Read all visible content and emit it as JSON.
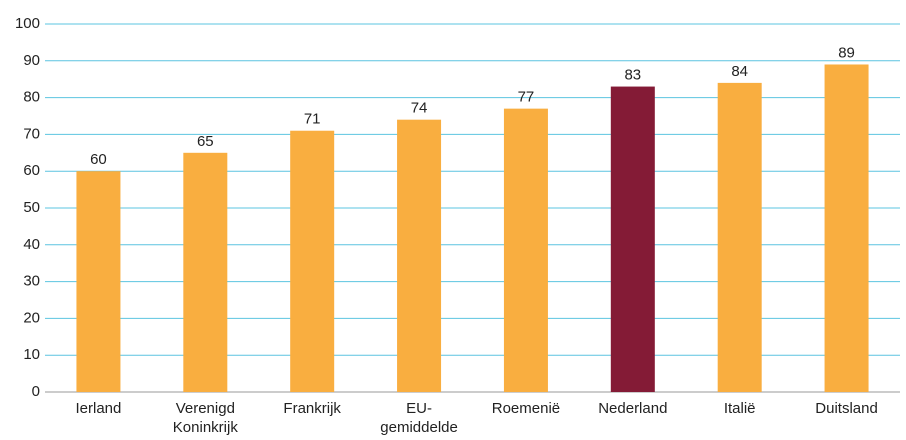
{
  "chart_data": {
    "type": "bar",
    "categories": [
      "Ierland",
      "Verenigd Koninkrijk",
      "Frankrijk",
      "EU-gemiddelde",
      "Roemenië",
      "Nederland",
      "Italië",
      "Duitsland"
    ],
    "values": [
      60,
      65,
      71,
      74,
      77,
      83,
      84,
      89
    ],
    "colors": [
      "#f9ae40",
      "#f9ae40",
      "#f9ae40",
      "#f9ae40",
      "#f9ae40",
      "#841b36",
      "#f9ae40",
      "#f9ae40"
    ],
    "ylim": [
      0,
      100
    ],
    "yticks": [
      0,
      10,
      20,
      30,
      40,
      50,
      60,
      70,
      80,
      90,
      100
    ],
    "grid": true
  }
}
